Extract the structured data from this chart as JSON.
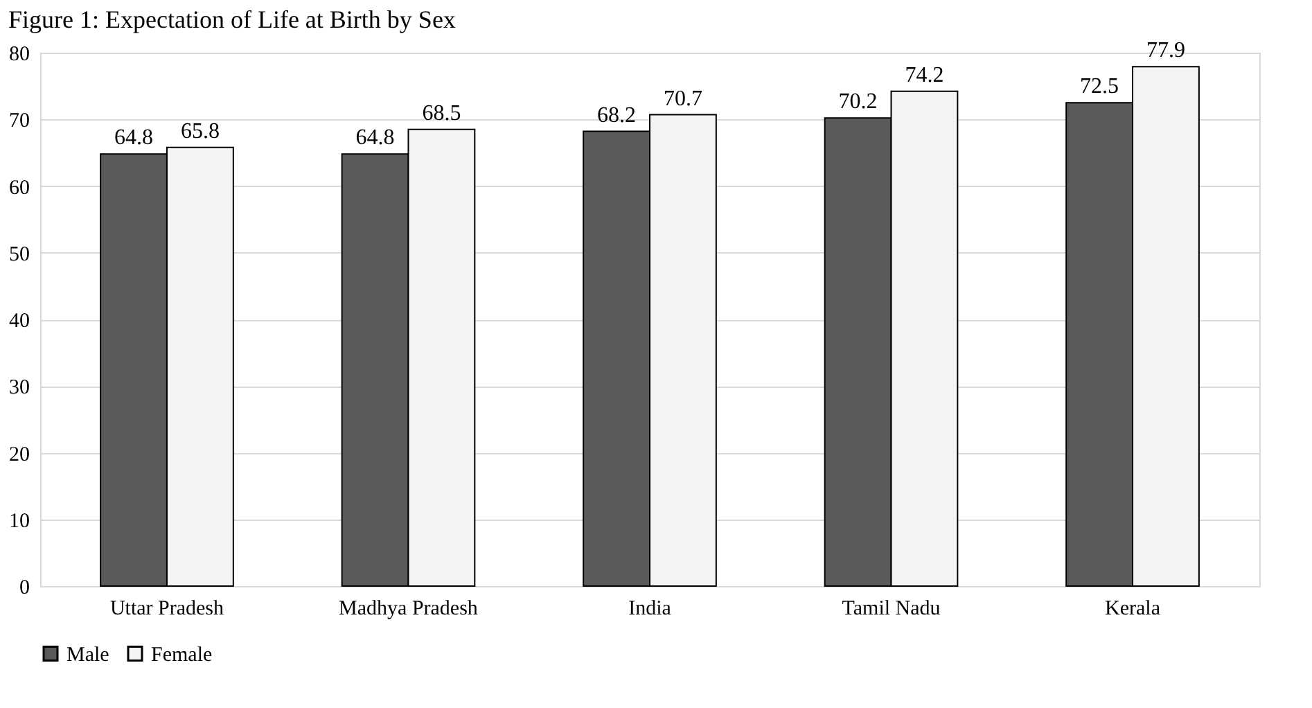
{
  "chart_data": {
    "type": "bar",
    "title": "Figure 1: Expectation of Life at Birth by Sex",
    "categories": [
      "Uttar Pradesh",
      "Madhya Pradesh",
      "India",
      "Tamil Nadu",
      "Kerala"
    ],
    "series": [
      {
        "name": "Male",
        "color": "#5a5a5a",
        "values": [
          64.8,
          64.8,
          68.2,
          70.2,
          72.5
        ]
      },
      {
        "name": "Female",
        "color": "#f4f4f4",
        "values": [
          65.8,
          68.5,
          70.7,
          74.2,
          77.9
        ]
      }
    ],
    "ylim": [
      0,
      80
    ],
    "yticks": [
      0,
      10,
      20,
      30,
      40,
      50,
      60,
      70,
      80
    ],
    "grid": "y",
    "legend": "bottom",
    "data_labels": true
  }
}
